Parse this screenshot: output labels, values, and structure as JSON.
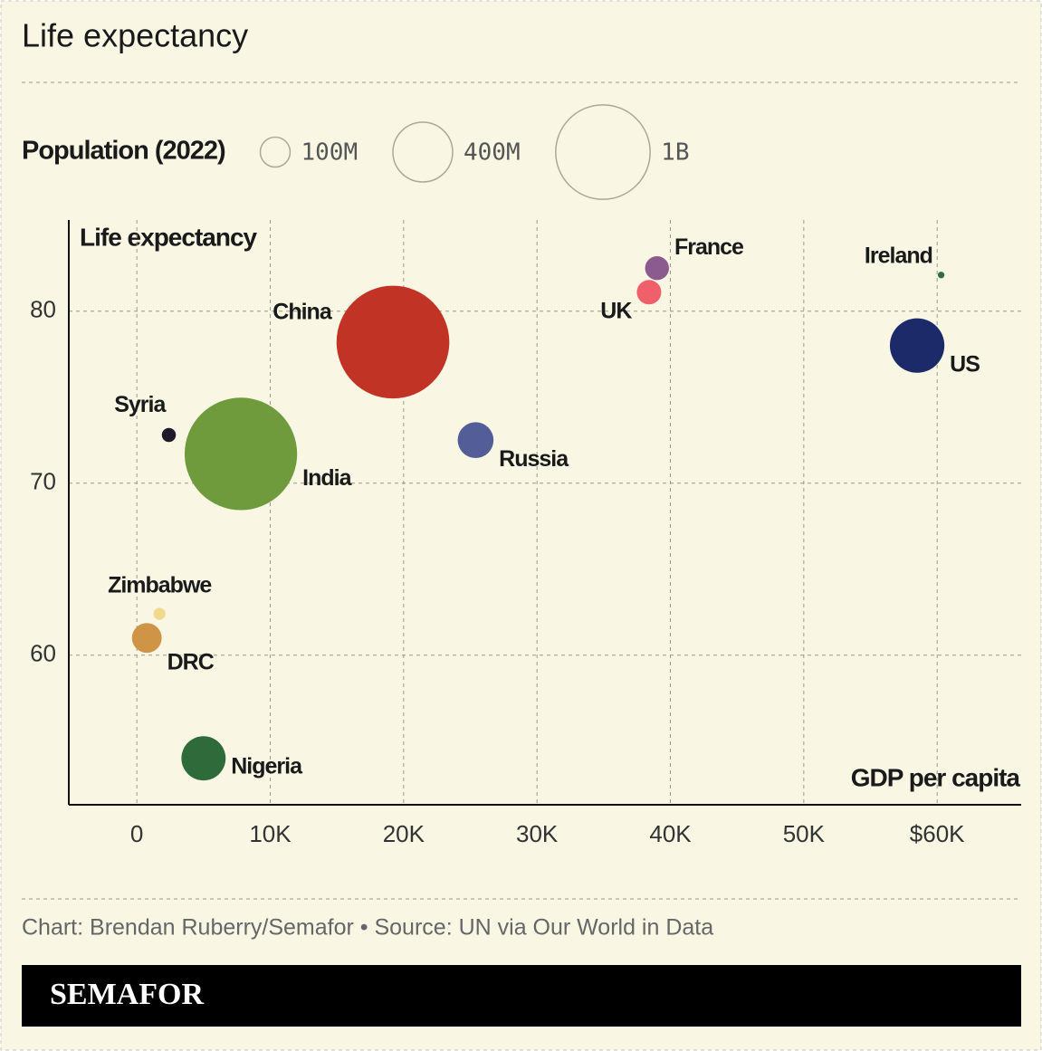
{
  "chart_data": {
    "type": "scatter",
    "title": "Life expectancy",
    "size_legend": {
      "title": "Population (2022)",
      "values": [
        {
          "value": 100,
          "label": "100M"
        },
        {
          "value": 400,
          "label": "400M"
        },
        {
          "value": 1000,
          "label": "1B"
        }
      ]
    },
    "y_label": "Life expectancy",
    "x_label": "GDP per capita",
    "xlim": [
      -5100,
      66300
    ],
    "ylim": [
      51.3,
      85.3
    ],
    "xticks": [
      0,
      {
        "value": 10000,
        "label": "10K"
      },
      {
        "value": 20000,
        "label": "20K"
      },
      {
        "value": 30000,
        "label": "30K"
      },
      {
        "value": 40000,
        "label": "40K"
      },
      {
        "value": 50000,
        "label": "50K"
      },
      {
        "value": 60000,
        "label": "$60K"
      }
    ],
    "yticks": [
      60,
      70,
      80
    ],
    "grid": true,
    "points": [
      {
        "name": "China",
        "x": 19200,
        "y": 78.2,
        "size": 1425,
        "color": "#c13324"
      },
      {
        "name": "India",
        "x": 7800,
        "y": 71.7,
        "size": 1417,
        "color": "#6f9b3d"
      },
      {
        "name": "US",
        "x": 58500,
        "y": 78.0,
        "size": 333,
        "color": "#1c2a6a"
      },
      {
        "name": "Russia",
        "x": 25400,
        "y": 72.5,
        "size": 144,
        "color": "#535d97"
      },
      {
        "name": "Nigeria",
        "x": 5000,
        "y": 54.0,
        "size": 219,
        "color": "#2f6a3b"
      },
      {
        "name": "DRC",
        "x": 750,
        "y": 61.0,
        "size": 99,
        "color": "#cf9445"
      },
      {
        "name": "Zimbabwe",
        "x": 1700,
        "y": 62.4,
        "size": 16,
        "color": "#f1d98c"
      },
      {
        "name": "Syria",
        "x": 2400,
        "y": 72.8,
        "size": 22,
        "color": "#1d1a2b"
      },
      {
        "name": "France",
        "x": 39000,
        "y": 82.5,
        "size": 64,
        "color": "#8b5a8f"
      },
      {
        "name": "UK",
        "x": 38400,
        "y": 81.1,
        "size": 67,
        "color": "#f0606a"
      },
      {
        "name": "Ireland",
        "x": 60300,
        "y": 82.1,
        "size": 5,
        "color": "#2e6d45"
      }
    ]
  },
  "footer": {
    "credit": "Chart: Brendan Ruberry/Semafor • Source: UN via Our World in Data",
    "brand": "SEMAFOR"
  }
}
